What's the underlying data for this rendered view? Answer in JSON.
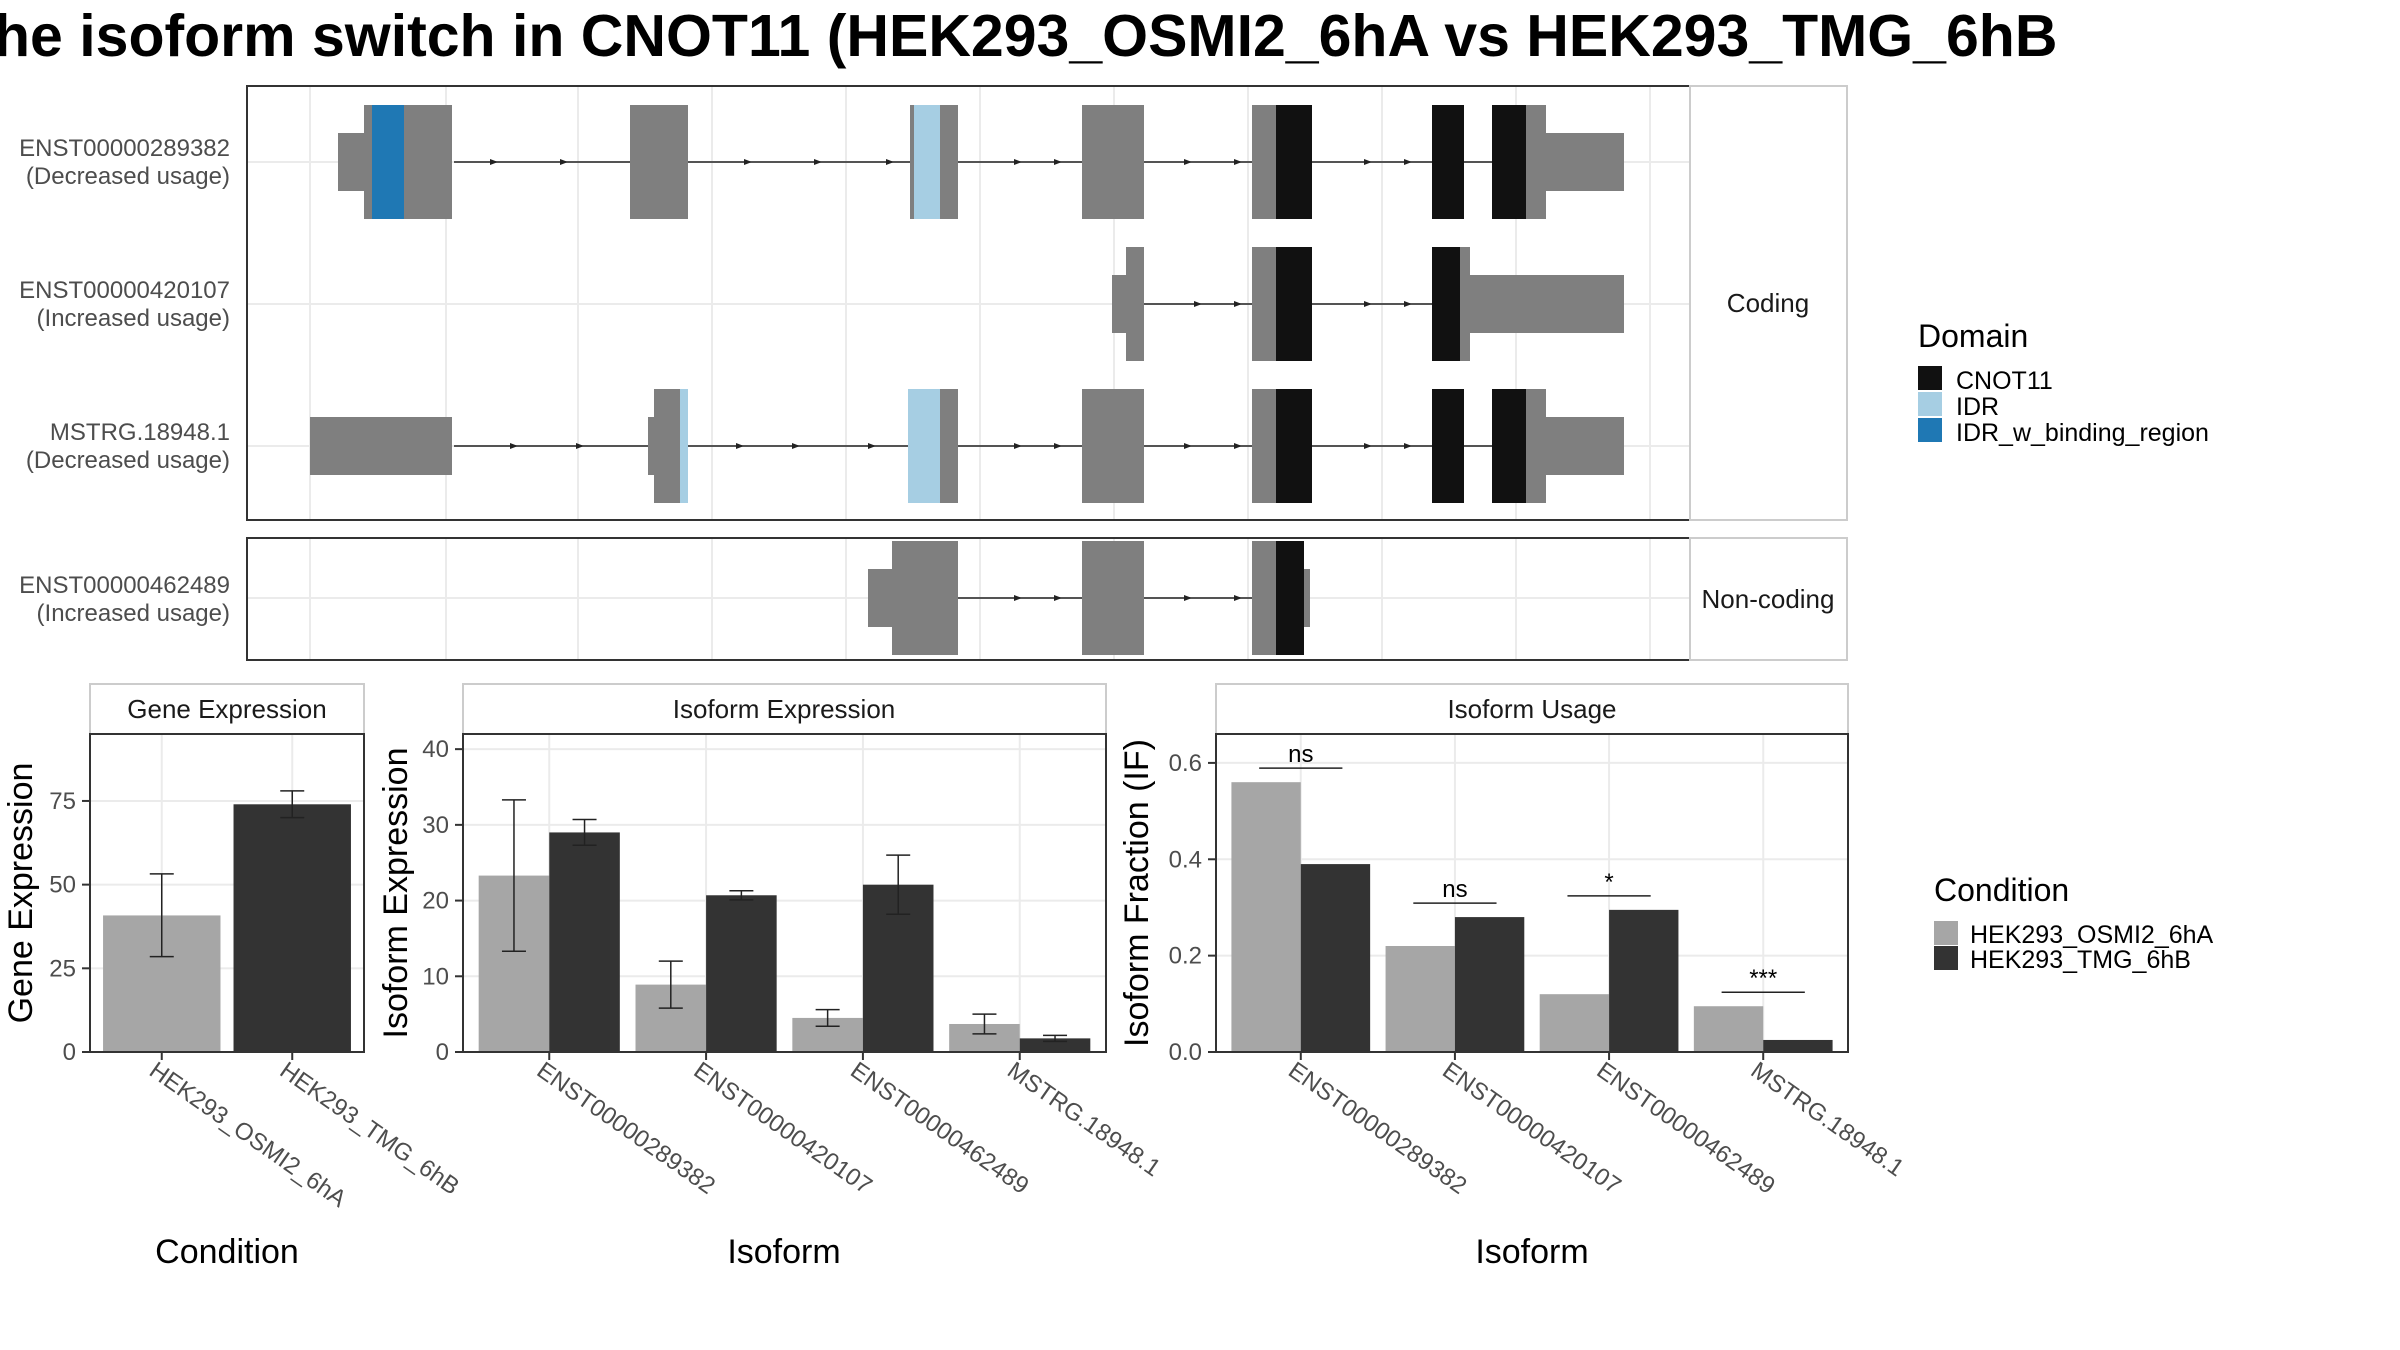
{
  "title": "he isoform switch in CNOT11 (HEK293_OSMI2_6hA vs HEK293_TMG_6hB",
  "colors": {
    "exon": "#7f7f7f",
    "CNOT11": "#111111",
    "IDR": "#a6cee3",
    "IDR_w_binding_region": "#1f78b4",
    "cond_A": "#a6a6a6",
    "cond_B": "#333333"
  },
  "structure": {
    "coding_strip": "Coding",
    "noncoding_strip": "Non-coding",
    "tracks": [
      {
        "id": "ENST00000289382",
        "usage": "(Decreased usage)",
        "group": "coding"
      },
      {
        "id": "ENST00000420107",
        "usage": "(Increased usage)",
        "group": "coding"
      },
      {
        "id": "MSTRG.18948.1",
        "usage": "(Decreased usage)",
        "group": "coding"
      },
      {
        "id": "ENST00000462489",
        "usage": "(Increased usage)",
        "group": "noncoding"
      }
    ]
  },
  "domain_legend": {
    "title": "Domain",
    "items": [
      {
        "label": "CNOT11",
        "color": "#111111"
      },
      {
        "label": "IDR",
        "color": "#a6cee3"
      },
      {
        "label": "IDR_w_binding_region",
        "color": "#1f78b4"
      }
    ]
  },
  "condition_legend": {
    "title": "Condition",
    "items": [
      {
        "label": "HEK293_OSMI2_6hA",
        "color": "#a6a6a6"
      },
      {
        "label": "HEK293_TMG_6hB",
        "color": "#333333"
      }
    ]
  },
  "chart_data": [
    {
      "type": "bar",
      "title": "Gene Expression",
      "xlabel": "Condition",
      "ylabel": "Gene Expression",
      "ylim": [
        0,
        95
      ],
      "yticks": [
        0,
        25,
        50,
        75
      ],
      "categories": [
        "HEK293_OSMI2_6hA",
        "HEK293_TMG_6hB"
      ],
      "values": [
        40.8,
        74.0
      ],
      "error_low": [
        28.5,
        70.0
      ],
      "error_high": [
        53.2,
        78.0
      ]
    },
    {
      "type": "bar",
      "title": "Isoform Expression",
      "xlabel": "Isoform",
      "ylabel": "Isoform Expression",
      "ylim": [
        0,
        42
      ],
      "yticks": [
        0,
        10,
        20,
        30,
        40
      ],
      "categories": [
        "ENST00000289382",
        "ENST00000420107",
        "ENST00000462489",
        "MSTRG.18948.1"
      ],
      "series": [
        {
          "name": "HEK293_OSMI2_6hA",
          "values": [
            23.3,
            8.9,
            4.5,
            3.7
          ],
          "error_low": [
            13.3,
            5.8,
            3.4,
            2.4
          ],
          "error_high": [
            33.3,
            12.0,
            5.6,
            5.0
          ]
        },
        {
          "name": "HEK293_TMG_6hB",
          "values": [
            29.0,
            20.7,
            22.1,
            1.8
          ],
          "error_low": [
            27.3,
            20.1,
            18.2,
            1.4
          ],
          "error_high": [
            30.7,
            21.3,
            26.0,
            2.2
          ]
        }
      ]
    },
    {
      "type": "bar",
      "title": "Isoform Usage",
      "xlabel": "Isoform",
      "ylabel": "Isoform Fraction (IF)",
      "ylim": [
        0,
        0.66
      ],
      "yticks": [
        0.0,
        0.2,
        0.4,
        0.6
      ],
      "ytick_labels": [
        "0.0",
        "0.2",
        "0.4",
        "0.6"
      ],
      "categories": [
        "ENST00000289382",
        "ENST00000420107",
        "ENST00000462489",
        "MSTRG.18948.1"
      ],
      "series": [
        {
          "name": "HEK293_OSMI2_6hA",
          "values": [
            0.56,
            0.22,
            0.12,
            0.095
          ]
        },
        {
          "name": "HEK293_TMG_6hB",
          "values": [
            0.39,
            0.28,
            0.295,
            0.025
          ]
        }
      ],
      "significance": [
        "ns",
        "ns",
        "*",
        "***"
      ]
    }
  ]
}
